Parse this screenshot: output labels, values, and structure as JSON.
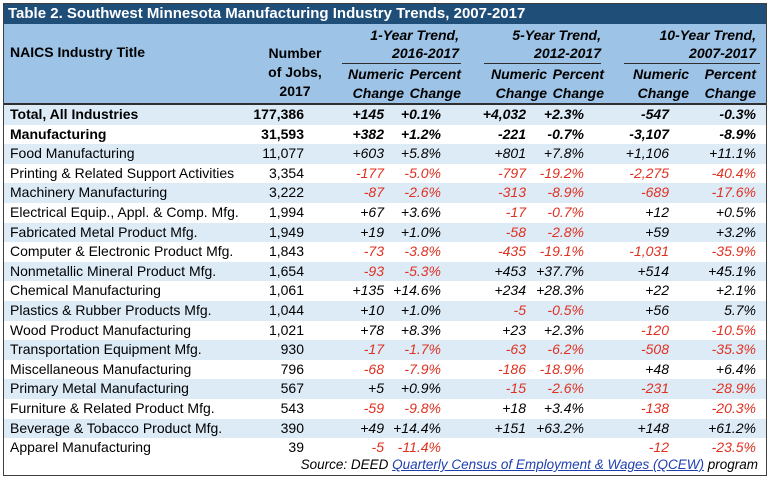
{
  "title": "Table 2. Southwest Minnesota Manufacturing Industry Trends, 2007-2017",
  "header": {
    "industry": "NAICS Industry Title",
    "jobs_lines": [
      "Number",
      "of Jobs,",
      "2017"
    ],
    "trend1_lines": [
      "1-Year Trend,",
      "2016-2017"
    ],
    "trend5_lines": [
      "5-Year Trend,",
      "2012-2017"
    ],
    "trend10_lines": [
      "10-Year Trend,",
      "2007-2017"
    ],
    "numeric_lines": [
      "Numeric",
      "Change"
    ],
    "percent_lines": [
      "Percent",
      "Change"
    ]
  },
  "rows": [
    {
      "name": "Total, All Industries",
      "jobs": "177,386",
      "y1n": "+145",
      "y1p": "+0.1%",
      "y5n": "+4,032",
      "y5p": "+2.3%",
      "y10n": "-547",
      "y10p": "-0.3%",
      "bold": true,
      "shade": true
    },
    {
      "name": "Manufacturing",
      "jobs": "31,593",
      "y1n": "+382",
      "y1p": "+1.2%",
      "y5n": "-221",
      "y5p": "-0.7%",
      "y10n": "-3,107",
      "y10p": "-8.9%",
      "bold": true,
      "shade": false
    },
    {
      "name": "Food Manufacturing",
      "jobs": "11,077",
      "y1n": "+603",
      "y1p": "+5.8%",
      "y5n": "+801",
      "y5p": "+7.8%",
      "y10n": "+1,106",
      "y10p": "+11.1%",
      "shade": true
    },
    {
      "name": "Printing & Related Support Activities",
      "jobs": "3,354",
      "y1n": "-177",
      "y1p": "-5.0%",
      "y5n": "-797",
      "y5p": "-19.2%",
      "y10n": "-2,275",
      "y10p": "-40.4%",
      "shade": false
    },
    {
      "name": "Machinery Manufacturing",
      "jobs": "3,222",
      "y1n": "-87",
      "y1p": "-2.6%",
      "y5n": "-313",
      "y5p": "-8.9%",
      "y10n": "-689",
      "y10p": "-17.6%",
      "shade": true
    },
    {
      "name": "Electrical Equip., Appl. & Comp. Mfg.",
      "jobs": "1,994",
      "y1n": "+67",
      "y1p": "+3.6%",
      "y5n": "-17",
      "y5p": "-0.7%",
      "y10n": "+12",
      "y10p": "+0.5%",
      "shade": false
    },
    {
      "name": "Fabricated Metal Product Mfg.",
      "jobs": "1,949",
      "y1n": "+19",
      "y1p": "+1.0%",
      "y5n": "-58",
      "y5p": "-2.8%",
      "y10n": "+59",
      "y10p": "+3.2%",
      "shade": true
    },
    {
      "name": "Computer & Electronic Product Mfg.",
      "jobs": "1,843",
      "y1n": "-73",
      "y1p": "-3.8%",
      "y5n": "-435",
      "y5p": "-19.1%",
      "y10n": "-1,031",
      "y10p": "-35.9%",
      "shade": false
    },
    {
      "name": "Nonmetallic Mineral Product Mfg.",
      "jobs": "1,654",
      "y1n": "-93",
      "y1p": "-5.3%",
      "y5n": "+453",
      "y5p": "+37.7%",
      "y10n": "+514",
      "y10p": "+45.1%",
      "shade": true
    },
    {
      "name": "Chemical Manufacturing",
      "jobs": "1,061",
      "y1n": "+135",
      "y1p": "+14.6%",
      "y5n": "+234",
      "y5p": "+28.3%",
      "y10n": "+22",
      "y10p": "+2.1%",
      "shade": false
    },
    {
      "name": "Plastics & Rubber Products Mfg.",
      "jobs": "1,044",
      "y1n": "+10",
      "y1p": "+1.0%",
      "y5n": "-5",
      "y5p": "-0.5%",
      "y10n": "+56",
      "y10p": "5.7%",
      "shade": true
    },
    {
      "name": "Wood Product Manufacturing",
      "jobs": "1,021",
      "y1n": "+78",
      "y1p": "+8.3%",
      "y5n": "+23",
      "y5p": "+2.3%",
      "y10n": "-120",
      "y10p": "-10.5%",
      "shade": false
    },
    {
      "name": "Transportation Equipment Mfg.",
      "jobs": "930",
      "y1n": "-17",
      "y1p": "-1.7%",
      "y5n": "-63",
      "y5p": "-6.2%",
      "y10n": "-508",
      "y10p": "-35.3%",
      "shade": true
    },
    {
      "name": "Miscellaneous Manufacturing",
      "jobs": "796",
      "y1n": "-68",
      "y1p": "-7.9%",
      "y5n": "-186",
      "y5p": "-18.9%",
      "y10n": "+48",
      "y10p": "+6.4%",
      "shade": false
    },
    {
      "name": "Primary Metal Manufacturing",
      "jobs": "567",
      "y1n": "+5",
      "y1p": "+0.9%",
      "y5n": "-15",
      "y5p": "-2.6%",
      "y10n": "-231",
      "y10p": "-28.9%",
      "shade": true
    },
    {
      "name": "Furniture & Related Product Mfg.",
      "jobs": "543",
      "y1n": "-59",
      "y1p": "-9.8%",
      "y5n": "+18",
      "y5p": "+3.4%",
      "y10n": "-138",
      "y10p": "-20.3%",
      "shade": false
    },
    {
      "name": "Beverage & Tobacco Product Mfg.",
      "jobs": "390",
      "y1n": "+49",
      "y1p": "+14.4%",
      "y5n": "+151",
      "y5p": "+63.2%",
      "y10n": "+148",
      "y10p": "+61.2%",
      "shade": true
    },
    {
      "name": "Apparel Manufacturing",
      "jobs": "39",
      "y1n": "-5",
      "y1p": "-11.4%",
      "y5n": "",
      "y5p": "",
      "y10n": "-12",
      "y10p": "-23.5%",
      "shade": false
    }
  ],
  "source": {
    "prefix": "Source: DEED ",
    "link": "Quarterly Census of Employment & Wages (QCEW)",
    "suffix": " program"
  },
  "colors": {
    "title_bg": "#1f4e79",
    "header_bg": "#9dc3e6",
    "shade_bg": "#ddebf7",
    "negative": "#e03020",
    "link": "#1f3fb0"
  }
}
